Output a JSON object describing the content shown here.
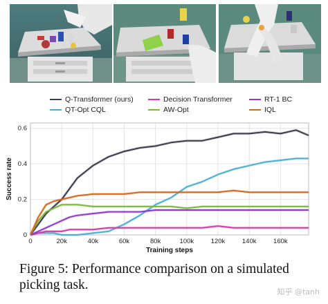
{
  "colors": {
    "q_transformer": "#3a3a4a",
    "qt_opt_cql": "#4aaed0",
    "decision_transformer": "#d63aa0",
    "aw_opt": "#7ab83a",
    "rt1_bc": "#8a3ad0",
    "iql": "#d4671c"
  },
  "legend_labels": [
    "Q-Transformer (ours)",
    "Decision Transformer",
    "RT-1 BC",
    "QT-Opt CQL",
    "AW-Opt",
    "IQL"
  ],
  "caption": "Figure 5: Performance comparison on a simulated picking task.",
  "watermark": "知乎 @tanh",
  "chart_data": {
    "type": "line",
    "xlabel": "Training steps",
    "ylabel": "Success rate",
    "xlim": [
      0,
      178000
    ],
    "ylim": [
      0,
      0.63
    ],
    "x_ticks": [
      0,
      20000,
      40000,
      60000,
      80000,
      100000,
      120000,
      140000,
      160000
    ],
    "x_tick_labels": [
      "0",
      "20k",
      "40k",
      "60k",
      "80k",
      "100k",
      "120k",
      "140k",
      "160k"
    ],
    "y_ticks": [
      0,
      0.2,
      0.4,
      0.6
    ],
    "y_tick_labels": [
      "0",
      "0.2",
      "0.4",
      "0.6"
    ],
    "grid": true,
    "legend_placement": "top",
    "x": [
      0,
      5000,
      10000,
      15000,
      20000,
      25000,
      30000,
      40000,
      50000,
      60000,
      70000,
      80000,
      90000,
      100000,
      110000,
      120000,
      130000,
      140000,
      150000,
      160000,
      170000,
      178000
    ],
    "series": [
      {
        "name": "Q-Transformer (ours)",
        "color_key": "q_transformer",
        "values": [
          0,
          0.06,
          0.12,
          0.16,
          0.2,
          0.26,
          0.32,
          0.39,
          0.44,
          0.47,
          0.49,
          0.5,
          0.52,
          0.53,
          0.53,
          0.55,
          0.57,
          0.57,
          0.58,
          0.57,
          0.59,
          0.56
        ]
      },
      {
        "name": "QT-Opt CQL",
        "color_key": "qt_opt_cql",
        "values": [
          0,
          0.01,
          0.01,
          0.01,
          0.0,
          0.0,
          0.0,
          0.01,
          0.02,
          0.06,
          0.11,
          0.17,
          0.21,
          0.27,
          0.3,
          0.34,
          0.37,
          0.39,
          0.41,
          0.42,
          0.43,
          0.43
        ]
      },
      {
        "name": "Decision Transformer",
        "color_key": "decision_transformer",
        "values": [
          0,
          0.01,
          0.02,
          0.02,
          0.02,
          0.03,
          0.03,
          0.03,
          0.04,
          0.04,
          0.04,
          0.04,
          0.04,
          0.04,
          0.04,
          0.05,
          0.04,
          0.04,
          0.04,
          0.04,
          0.04,
          0.04
        ]
      },
      {
        "name": "AW-Opt",
        "color_key": "aw_opt",
        "values": [
          0,
          0.08,
          0.13,
          0.15,
          0.17,
          0.17,
          0.17,
          0.16,
          0.16,
          0.16,
          0.16,
          0.16,
          0.16,
          0.15,
          0.16,
          0.16,
          0.16,
          0.16,
          0.16,
          0.16,
          0.16,
          0.16
        ]
      },
      {
        "name": "RT-1 BC",
        "color_key": "rt1_bc",
        "values": [
          0,
          0.02,
          0.04,
          0.06,
          0.08,
          0.1,
          0.11,
          0.12,
          0.13,
          0.13,
          0.13,
          0.14,
          0.14,
          0.14,
          0.14,
          0.14,
          0.14,
          0.14,
          0.14,
          0.14,
          0.14,
          0.14
        ]
      },
      {
        "name": "IQL",
        "color_key": "iql",
        "values": [
          0,
          0.1,
          0.17,
          0.19,
          0.2,
          0.21,
          0.22,
          0.23,
          0.23,
          0.23,
          0.24,
          0.24,
          0.24,
          0.24,
          0.24,
          0.24,
          0.25,
          0.24,
          0.24,
          0.24,
          0.24,
          0.24
        ]
      }
    ]
  }
}
